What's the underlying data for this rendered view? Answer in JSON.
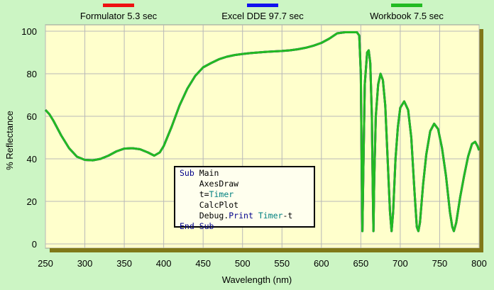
{
  "chart_data": {
    "type": "line",
    "xlabel": "Wavelength (nm)",
    "ylabel": "% Reflectance",
    "xlim": [
      250,
      800
    ],
    "xticks": [
      250,
      300,
      350,
      400,
      450,
      500,
      550,
      600,
      650,
      700,
      750,
      800
    ],
    "ylim": [
      0,
      100
    ],
    "yticks": [
      0,
      20,
      40,
      60,
      80,
      100
    ],
    "grid": true,
    "x": [
      250,
      255,
      260,
      270,
      280,
      290,
      300,
      310,
      320,
      330,
      340,
      350,
      360,
      370,
      380,
      388,
      395,
      400,
      410,
      420,
      430,
      440,
      450,
      460,
      470,
      480,
      490,
      500,
      510,
      520,
      530,
      540,
      550,
      560,
      570,
      580,
      590,
      600,
      610,
      620,
      630,
      640,
      645,
      648,
      650,
      651,
      652,
      653,
      655,
      658,
      660,
      662,
      664,
      665,
      666,
      667,
      669,
      672,
      675,
      678,
      681,
      684,
      687,
      689,
      691,
      694,
      697,
      700,
      705,
      710,
      714,
      718,
      721,
      723,
      725,
      729,
      733,
      738,
      743,
      748,
      753,
      758,
      763,
      766,
      768,
      771,
      776,
      781,
      786,
      791,
      795,
      798,
      800
    ],
    "series": [
      {
        "name": "Formulator 5.3 sec",
        "color": "#ee1111",
        "values": [
          63,
          61,
          58,
          51,
          45,
          41,
          39.5,
          39.3,
          40,
          41.5,
          43.5,
          44.8,
          45,
          44.5,
          43,
          41.5,
          43,
          46,
          55,
          65,
          73,
          79,
          83,
          85,
          86.8,
          88,
          88.8,
          89.3,
          89.7,
          90,
          90.3,
          90.5,
          90.7,
          91,
          91.5,
          92.2,
          93.2,
          94.5,
          96.5,
          99,
          99.5,
          99.5,
          99.5,
          98,
          80,
          40,
          6,
          30,
          75,
          90,
          91,
          85,
          60,
          30,
          6,
          30,
          60,
          75,
          80,
          77,
          65,
          40,
          15,
          6,
          15,
          40,
          55,
          64,
          67,
          63,
          50,
          25,
          8,
          6,
          10,
          28,
          42,
          53,
          56.5,
          54,
          45,
          32,
          15,
          8,
          6,
          10,
          22,
          32,
          41,
          47,
          48,
          46,
          44
        ]
      },
      {
        "name": "Excel DDE 97.7 sec",
        "color": "#1111ee",
        "values": [
          63,
          61,
          58,
          51,
          45,
          41,
          39.5,
          39.3,
          40,
          41.5,
          43.5,
          44.8,
          45,
          44.5,
          43,
          41.5,
          43,
          46,
          55,
          65,
          73,
          79,
          83,
          85,
          86.8,
          88,
          88.8,
          89.3,
          89.7,
          90,
          90.3,
          90.5,
          90.7,
          91,
          91.5,
          92.2,
          93.2,
          94.5,
          96.5,
          99,
          99.5,
          99.5,
          99.5,
          98,
          80,
          40,
          6,
          30,
          75,
          90,
          91,
          85,
          60,
          30,
          6,
          30,
          60,
          75,
          80,
          77,
          65,
          40,
          15,
          6,
          15,
          40,
          55,
          64,
          67,
          63,
          50,
          25,
          8,
          6,
          10,
          28,
          42,
          53,
          56.5,
          54,
          45,
          32,
          15,
          8,
          6,
          10,
          22,
          32,
          41,
          47,
          48,
          46,
          44
        ]
      },
      {
        "name": "Workbook 7.5 sec",
        "color": "#22bb22",
        "values": [
          63,
          61,
          58,
          51,
          45,
          41,
          39.5,
          39.3,
          40,
          41.5,
          43.5,
          44.8,
          45,
          44.5,
          43,
          41.5,
          43,
          46,
          55,
          65,
          73,
          79,
          83,
          85,
          86.8,
          88,
          88.8,
          89.3,
          89.7,
          90,
          90.3,
          90.5,
          90.7,
          91,
          91.5,
          92.2,
          93.2,
          94.5,
          96.5,
          99,
          99.5,
          99.5,
          99.5,
          98,
          80,
          40,
          6,
          30,
          75,
          90,
          91,
          85,
          60,
          30,
          6,
          30,
          60,
          75,
          80,
          77,
          65,
          40,
          15,
          6,
          15,
          40,
          55,
          64,
          67,
          63,
          50,
          25,
          8,
          6,
          10,
          28,
          42,
          53,
          56.5,
          54,
          45,
          32,
          15,
          8,
          6,
          10,
          22,
          32,
          41,
          47,
          48,
          46,
          44
        ]
      }
    ],
    "annotation": {
      "lines": [
        [
          {
            "text": "Sub",
            "color": "#00008b"
          },
          {
            "text": " Main",
            "color": "#000000"
          }
        ],
        [
          {
            "text": "    AxesDraw",
            "color": "#000000"
          }
        ],
        [
          {
            "text": "    t=",
            "color": "#000000"
          },
          {
            "text": "Timer",
            "color": "#008080"
          }
        ],
        [
          {
            "text": "    CalcPlot",
            "color": "#000000"
          }
        ],
        [
          {
            "text": "    Debug.",
            "color": "#000000"
          },
          {
            "text": "Print",
            "color": "#00008b"
          },
          {
            "text": " ",
            "color": "#000000"
          },
          {
            "text": "Timer",
            "color": "#008080"
          },
          {
            "text": "-t",
            "color": "#000000"
          }
        ],
        [
          {
            "text": "End Sub",
            "color": "#00008b"
          }
        ]
      ]
    }
  }
}
